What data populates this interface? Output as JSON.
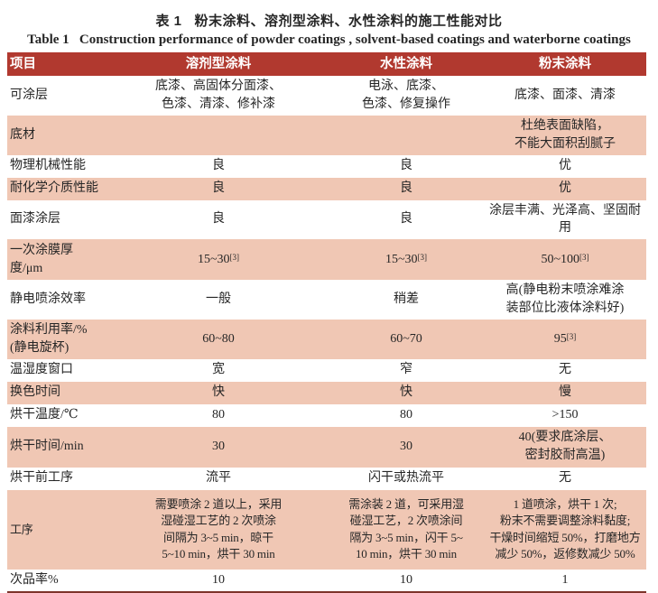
{
  "page": {
    "title_cn": "表 1   粉末涂料、溶剂型涂料、水性涂料的施工性能对比",
    "title_en": "Table 1   Construction performance of powder coatings , solvent-based coatings and waterborne coatings"
  },
  "colors": {
    "header_bg": "#b1392f",
    "row_pink": "#f0c7b4",
    "border_bottom": "#7e342b",
    "header_text": "#ffffff",
    "text": "#262626"
  },
  "refs": {
    "sup3": "[3]"
  },
  "table": {
    "headers": [
      "项目",
      "溶剂型涂料",
      "水性涂料",
      "粉末涂料"
    ],
    "rows": [
      {
        "label": "可涂层",
        "cells": [
          "底漆、高固体分面漆、\n色漆、清漆、修补漆",
          "电泳、底漆、\n色漆、修复操作",
          "底漆、面漆、清漆"
        ]
      },
      {
        "label": "底材",
        "cells": [
          "",
          "",
          "杜绝表面缺陷，\n不能大面积刮腻子"
        ]
      },
      {
        "label": "物理机械性能",
        "cells": [
          "良",
          "良",
          "优"
        ]
      },
      {
        "label": "耐化学介质性能",
        "cells": [
          "良",
          "良",
          "优"
        ]
      },
      {
        "label": "面漆涂层",
        "cells": [
          "良",
          "良",
          "涂层丰满、光泽高、坚固耐用"
        ]
      },
      {
        "label": "一次涂膜厚\n度/μm",
        "cells": [
          "15~30",
          "15~30",
          "50~100"
        ]
      },
      {
        "label": "静电喷涂效率",
        "cells": [
          "一般",
          "稍差",
          "高(静电粉末喷涂难涂\n装部位比液体涂料好)"
        ]
      },
      {
        "label": "涂料利用率/%\n(静电旋杯)",
        "cells": [
          "60~80",
          "60~70",
          "95"
        ]
      },
      {
        "label": "温湿度窗口",
        "cells": [
          "宽",
          "窄",
          "无"
        ]
      },
      {
        "label": "换色时间",
        "cells": [
          "快",
          "快",
          "慢"
        ]
      },
      {
        "label": "烘干温度/℃",
        "cells": [
          "80",
          "80",
          ">150"
        ]
      },
      {
        "label": "烘干时间/min",
        "cells": [
          "30",
          "30",
          "40(要求底涂层、\n密封胶耐高温)"
        ]
      },
      {
        "label": "烘干前工序",
        "cells": [
          "流平",
          "闪干或热流平",
          "无"
        ]
      },
      {
        "label": "工序",
        "cells": [
          "需要喷涂 2 道以上，采用\n湿碰湿工艺的 2 次喷涂\n间隔为 3~5 min，晾干\n5~10 min，烘干 30 min",
          "需涂装 2 道，可采用湿\n碰湿工艺，2 次喷涂间\n隔为 3~5 min，闪干 5~\n10 min，烘干 30 min",
          "1 道喷涂，烘干 1 次;\n粉末不需要调整涂料黏度;\n干燥时间缩短 50%，打磨地方\n减少 50%，返修数减少 50%"
        ]
      },
      {
        "label": "次品率%",
        "cells": [
          "10",
          "10",
          "1"
        ]
      }
    ]
  }
}
